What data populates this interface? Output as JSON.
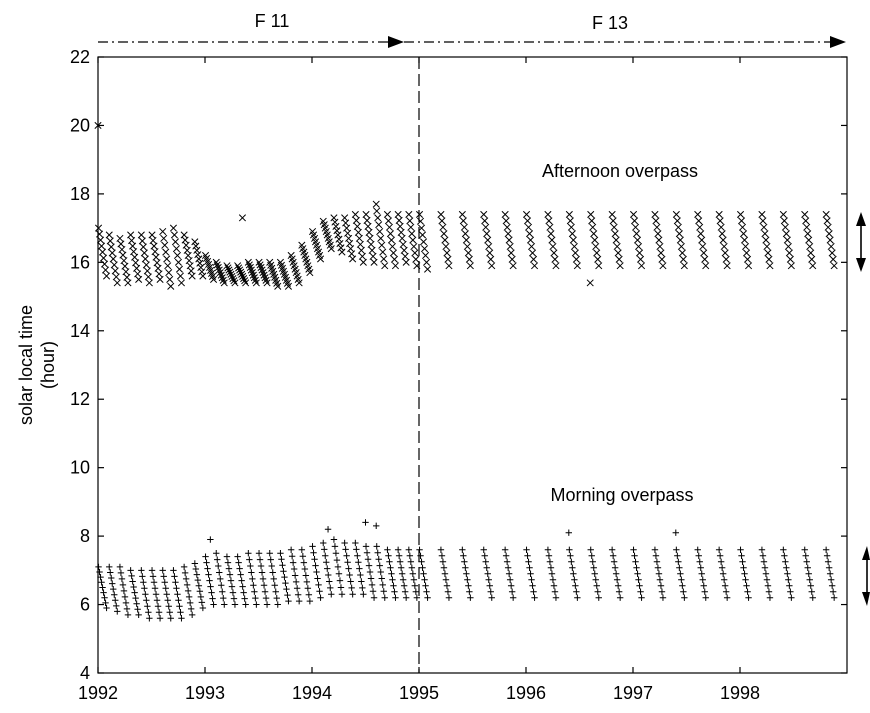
{
  "chart_data": {
    "type": "scatter",
    "title": "",
    "xlabel": "",
    "ylabel": [
      "solar local time",
      "(hour)"
    ],
    "xlim": [
      1992,
      1999
    ],
    "ylim": [
      4,
      22
    ],
    "x_ticks": [
      "1992",
      "1993",
      "1994",
      "1995",
      "1996",
      "1997",
      "1998"
    ],
    "x_tick_values": [
      1992,
      1993,
      1994,
      1995,
      1996,
      1997,
      1998
    ],
    "y_ticks": [
      "4",
      "6",
      "8",
      "10",
      "12",
      "14",
      "16",
      "18",
      "20",
      "22"
    ],
    "y_tick_values": [
      4,
      6,
      8,
      10,
      12,
      14,
      16,
      18,
      20,
      22
    ],
    "grid": false,
    "annotations": {
      "afternoon": "Afternoon overpass",
      "morning": "Morning overpass"
    },
    "satellites": [
      {
        "label": "F 11",
        "start": 1992,
        "end": 1995
      },
      {
        "label": "F 13",
        "start": 1995,
        "end": 1999
      }
    ],
    "transition_x": 1995,
    "series": [
      {
        "name": "Afternoon overpass",
        "marker": "x",
        "x": [
          1992.0,
          1992.1,
          1992.2,
          1992.3,
          1992.4,
          1992.5,
          1992.6,
          1992.7,
          1992.8,
          1992.9,
          1993.0,
          1993.1,
          1993.2,
          1993.3,
          1993.4,
          1993.5,
          1993.6,
          1993.7,
          1993.8,
          1993.9,
          1994.0,
          1994.1,
          1994.2,
          1994.3,
          1994.4,
          1994.5,
          1994.6,
          1994.7,
          1994.8,
          1994.9,
          1995.0,
          1995.2,
          1995.4,
          1995.6,
          1995.8,
          1996.0,
          1996.2,
          1996.4,
          1996.6,
          1996.8,
          1997.0,
          1997.2,
          1997.4,
          1997.6,
          1997.8,
          1998.0,
          1998.2,
          1998.4,
          1998.6,
          1998.8
        ],
        "y_min": [
          15.6,
          15.4,
          15.4,
          15.5,
          15.4,
          15.5,
          15.3,
          15.4,
          15.6,
          15.6,
          15.5,
          15.4,
          15.4,
          15.4,
          15.4,
          15.4,
          15.3,
          15.3,
          15.4,
          15.7,
          16.1,
          16.4,
          16.3,
          16.1,
          16.0,
          16.0,
          15.9,
          15.9,
          16.0,
          15.9,
          15.8,
          15.9,
          15.9,
          15.9,
          15.9,
          15.9,
          15.9,
          15.9,
          15.9,
          15.9,
          15.9,
          15.9,
          15.9,
          15.9,
          15.9,
          15.9,
          15.9,
          15.9,
          15.9,
          15.9
        ],
        "y_max": [
          17.0,
          16.8,
          16.7,
          16.8,
          16.8,
          16.8,
          16.9,
          17.0,
          16.8,
          16.6,
          16.2,
          16.0,
          15.9,
          15.9,
          16.0,
          16.0,
          16.0,
          16.0,
          16.2,
          16.5,
          16.9,
          17.2,
          17.3,
          17.3,
          17.4,
          17.4,
          17.5,
          17.4,
          17.4,
          17.4,
          17.4,
          17.4,
          17.4,
          17.4,
          17.4,
          17.4,
          17.4,
          17.4,
          17.4,
          17.4,
          17.4,
          17.4,
          17.4,
          17.4,
          17.4,
          17.4,
          17.4,
          17.4,
          17.4,
          17.4
        ],
        "outliers": [
          [
            1992.0,
            20.0
          ],
          [
            1993.35,
            17.3
          ],
          [
            1994.6,
            17.7
          ],
          [
            1996.6,
            15.4
          ]
        ]
      },
      {
        "name": "Morning overpass",
        "marker": "+",
        "x": [
          1992.0,
          1992.1,
          1992.2,
          1992.3,
          1992.4,
          1992.5,
          1992.6,
          1992.7,
          1992.8,
          1992.9,
          1993.0,
          1993.1,
          1993.2,
          1993.3,
          1993.4,
          1993.5,
          1993.6,
          1993.7,
          1993.8,
          1993.9,
          1994.0,
          1994.1,
          1994.2,
          1994.3,
          1994.4,
          1994.5,
          1994.6,
          1994.7,
          1994.8,
          1994.9,
          1995.0,
          1995.2,
          1995.4,
          1995.6,
          1995.8,
          1996.0,
          1996.2,
          1996.4,
          1996.6,
          1996.8,
          1997.0,
          1997.2,
          1997.4,
          1997.6,
          1997.8,
          1998.0,
          1998.2,
          1998.4,
          1998.6,
          1998.8
        ],
        "y_min": [
          5.9,
          5.8,
          5.7,
          5.7,
          5.6,
          5.6,
          5.6,
          5.6,
          5.7,
          5.9,
          6.0,
          6.0,
          6.0,
          6.0,
          6.0,
          6.0,
          6.0,
          6.1,
          6.1,
          6.1,
          6.2,
          6.3,
          6.3,
          6.3,
          6.3,
          6.2,
          6.2,
          6.2,
          6.2,
          6.2,
          6.2,
          6.2,
          6.2,
          6.2,
          6.2,
          6.2,
          6.2,
          6.2,
          6.2,
          6.2,
          6.2,
          6.2,
          6.2,
          6.2,
          6.2,
          6.2,
          6.2,
          6.2,
          6.2,
          6.2
        ],
        "y_max": [
          7.1,
          7.1,
          7.1,
          7.0,
          7.0,
          7.0,
          7.0,
          7.0,
          7.1,
          7.2,
          7.4,
          7.5,
          7.4,
          7.4,
          7.5,
          7.5,
          7.5,
          7.5,
          7.6,
          7.6,
          7.7,
          7.8,
          7.9,
          7.8,
          7.8,
          7.7,
          7.7,
          7.6,
          7.6,
          7.6,
          7.6,
          7.6,
          7.6,
          7.6,
          7.6,
          7.6,
          7.6,
          7.6,
          7.6,
          7.6,
          7.6,
          7.6,
          7.6,
          7.6,
          7.6,
          7.6,
          7.6,
          7.6,
          7.6,
          7.6
        ],
        "outliers": [
          [
            1993.05,
            7.9
          ],
          [
            1994.15,
            8.2
          ],
          [
            1994.5,
            8.4
          ],
          [
            1994.6,
            8.3
          ],
          [
            1996.4,
            8.1
          ],
          [
            1997.4,
            8.1
          ]
        ]
      }
    ]
  }
}
